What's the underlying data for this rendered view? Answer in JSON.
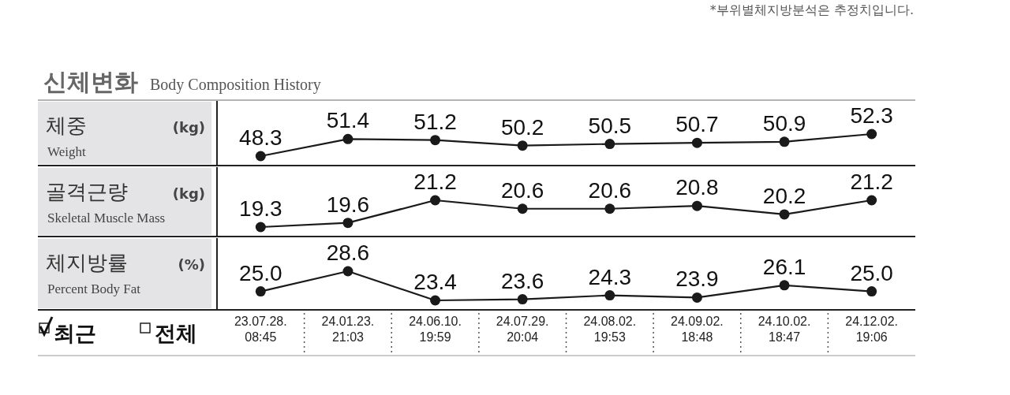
{
  "chart_data": [
    {
      "type": "line",
      "title": "신체변화",
      "subtitle": "Body Composition History",
      "ylabel": "체중",
      "annotations": [
        "(kg)",
        "Weight",
        "*부위별체지방분석은 추정치입니다."
      ],
      "color": "#1a1a1a",
      "marker": "circle",
      "tick_labels": false,
      "values": [
        48.3,
        51.4,
        51.2,
        50.2,
        50.5,
        50.7,
        50.9,
        52.3
      ],
      "value_labels": [
        "48.3",
        "51.4",
        "51.2",
        "50.2",
        "50.5",
        "50.7",
        "50.9",
        "52.3"
      ]
    },
    {
      "type": "line",
      "ylabel": "골격근량",
      "annotations": [
        "(kg)",
        "Skeletal Muscle Mass"
      ],
      "color": "#1a1a1a",
      "marker": "circle",
      "tick_labels": false,
      "values": [
        19.3,
        19.6,
        21.2,
        20.6,
        20.6,
        20.8,
        20.2,
        21.2
      ],
      "value_labels": [
        "19.3",
        "19.6",
        "21.2",
        "20.6",
        "20.6",
        "20.8",
        "20.2",
        "21.2"
      ]
    },
    {
      "type": "line",
      "ylabel": "체지방률",
      "annotations": [
        "(%)",
        "Percent Body Fat",
        "최근",
        "전체"
      ],
      "categories": [
        "23.07.28. 08:45",
        "24.01.23. 21:03",
        "24.06.10. 19:59",
        "24.07.29. 20:04",
        "24.08.02. 19:53",
        "24.09.02. 18:48",
        "24.10.02. 18:47",
        "24.12.02. 19:06"
      ],
      "color": "#1a1a1a",
      "marker": "circle",
      "tick_labels": "x",
      "values": [
        25.0,
        28.6,
        23.4,
        23.6,
        24.3,
        23.9,
        26.1,
        25.0
      ],
      "value_labels": [
        "25.0",
        "28.6",
        "23.4",
        "23.6",
        "24.3",
        "23.9",
        "26.1",
        "25.0"
      ]
    }
  ]
}
